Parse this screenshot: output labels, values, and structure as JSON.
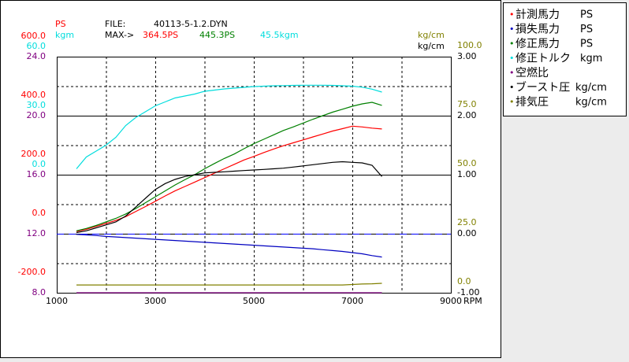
{
  "chart_data": {
    "type": "line",
    "file_label": "FILE:",
    "file": "40113-5-1.2.DYN",
    "max_label": "MAX->",
    "x_title": "RPM",
    "x": [
      1400,
      1600,
      1800,
      2000,
      2200,
      2400,
      2600,
      2800,
      3000,
      3200,
      3400,
      3600,
      3800,
      4000,
      4200,
      4400,
      4600,
      4800,
      5000,
      5200,
      5400,
      5600,
      5800,
      6000,
      6200,
      6400,
      6600,
      6800,
      7000,
      7200,
      7400,
      7600
    ],
    "xlim": [
      1000,
      9000
    ],
    "xticks": [
      1000,
      3000,
      5000,
      7000,
      9000
    ],
    "xgrid": [
      2000,
      3000,
      4000,
      5000,
      6000,
      7000,
      8000
    ],
    "axes": [
      {
        "side": "left",
        "title": "PS",
        "color": "#ff0000",
        "lim": [
          -200,
          600
        ],
        "ticks": [
          {
            "value": 600,
            "label": "600.0"
          },
          {
            "value": 400,
            "label": "400.0"
          },
          {
            "value": 200,
            "label": "200.0"
          },
          {
            "value": 0,
            "label": "0.0"
          },
          {
            "value": -200,
            "label": "-200.0"
          }
        ]
      },
      {
        "side": "left",
        "title": "kgm",
        "color": "#00dddd",
        "lim": [
          -60,
          60
        ],
        "ticks": [
          {
            "value": 60,
            "label": "60.0"
          },
          {
            "value": 30,
            "label": "30.0"
          },
          {
            "value": 0,
            "label": "0.0"
          }
        ]
      },
      {
        "side": "left",
        "color": "#800080",
        "lim": [
          8,
          24
        ],
        "ticks": [
          {
            "value": 24,
            "label": "24.0"
          },
          {
            "value": 20,
            "label": "20.0"
          },
          {
            "value": 16,
            "label": "16.0"
          },
          {
            "value": 12,
            "label": "12.0"
          },
          {
            "value": 8,
            "label": "8.0"
          }
        ]
      },
      {
        "side": "right",
        "title": "kg/cm",
        "color": "#808000",
        "lim": [
          0,
          100
        ],
        "ticks": [
          {
            "value": 100,
            "label": "100.0"
          },
          {
            "value": 75,
            "label": "75.0"
          },
          {
            "value": 50,
            "label": "50.0"
          },
          {
            "value": 25,
            "label": "25.0"
          },
          {
            "value": 0,
            "label": "0.0"
          }
        ]
      },
      {
        "side": "right",
        "title": "kg/cm",
        "color": "#000000",
        "lim": [
          -1,
          3
        ],
        "ticks": [
          {
            "value": 3,
            "label": "3.00"
          },
          {
            "value": 2,
            "label": "2.00"
          },
          {
            "value": 1,
            "label": "1.00"
          },
          {
            "value": 0,
            "label": "0.00"
          },
          {
            "value": -1,
            "label": "-1.00"
          }
        ]
      }
    ],
    "grid": true,
    "reference_line": {
      "axis": 4,
      "value": 0,
      "color": "#0000ff",
      "dashed": true
    },
    "series": [
      {
        "name": "計測馬力",
        "unit": "PS",
        "color": "#ff0000",
        "axis": 0,
        "max_label": "364.5PS",
        "values": [
          8,
          15,
          25,
          35,
          45,
          58,
          75,
          92,
          110,
          128,
          145,
          160,
          175,
          190,
          205,
          220,
          235,
          250,
          262,
          275,
          287,
          298,
          308,
          318,
          328,
          338,
          348,
          356,
          364.5,
          362,
          358,
          355
        ]
      },
      {
        "name": "損失馬力",
        "unit": "PS",
        "color": "#0000c0",
        "axis": 0,
        "values": [
          -2,
          -4,
          -6,
          -9,
          -11,
          -13,
          -15,
          -17,
          -19,
          -21,
          -23,
          -25,
          -27,
          -29,
          -31,
          -33,
          -35,
          -37,
          -39,
          -41,
          -43,
          -45,
          -47,
          -49,
          -51,
          -54,
          -57,
          -60,
          -64,
          -68,
          -74,
          -79
        ]
      },
      {
        "name": "修正馬力",
        "unit": "PS",
        "color": "#008000",
        "axis": 0,
        "max_label": "445.3PS",
        "values": [
          10,
          18,
          28,
          40,
          52,
          67,
          85,
          105,
          125,
          145,
          165,
          183,
          200,
          220,
          238,
          255,
          270,
          288,
          305,
          320,
          335,
          350,
          362,
          375,
          388,
          400,
          412,
          422,
          432,
          440,
          445.3,
          435
        ]
      },
      {
        "name": "修正トルク",
        "unit": "kgm",
        "color": "#00dddd",
        "axis": 1,
        "max_label": "45.5kgm",
        "values": [
          3,
          9,
          12,
          15,
          19,
          25,
          29,
          32,
          35,
          37,
          39,
          40,
          41,
          42.4,
          43,
          43.6,
          44,
          44.4,
          44.8,
          45,
          45.2,
          45.3,
          45.4,
          45.5,
          45.5,
          45.5,
          45.4,
          45.2,
          45,
          44.5,
          43.5,
          42
        ]
      },
      {
        "name": "空燃比",
        "color": "#800080",
        "axis": 2,
        "values": [
          8,
          8,
          8,
          8,
          8,
          8,
          8,
          8,
          8,
          8,
          8,
          8,
          8,
          8,
          8,
          8,
          8,
          8,
          8,
          8,
          8,
          8,
          8,
          8,
          8,
          8,
          8,
          8,
          8,
          8,
          8,
          8
        ]
      },
      {
        "name": "ブースト圧",
        "unit": "kg/cm",
        "color": "#000000",
        "axis": 4,
        "values": [
          0.02,
          0.05,
          0.1,
          0.15,
          0.2,
          0.3,
          0.45,
          0.6,
          0.75,
          0.85,
          0.92,
          0.97,
          1.0,
          1.03,
          1.04,
          1.05,
          1.06,
          1.07,
          1.08,
          1.09,
          1.1,
          1.11,
          1.13,
          1.15,
          1.17,
          1.19,
          1.21,
          1.22,
          1.21,
          1.2,
          1.16,
          0.97
        ]
      },
      {
        "name": "排気圧",
        "unit": "kg/cm",
        "color": "#808000",
        "axis": 3,
        "values": [
          3.3,
          3.3,
          3.3,
          3.3,
          3.3,
          3.3,
          3.3,
          3.3,
          3.3,
          3.3,
          3.3,
          3.3,
          3.3,
          3.3,
          3.3,
          3.3,
          3.3,
          3.3,
          3.3,
          3.3,
          3.3,
          3.3,
          3.3,
          3.3,
          3.3,
          3.3,
          3.3,
          3.3,
          3.5,
          3.7,
          3.8,
          4.0
        ]
      }
    ]
  }
}
